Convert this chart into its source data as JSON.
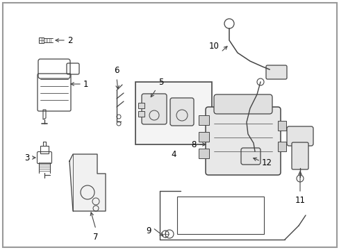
{
  "background_color": "#ffffff",
  "line_color": "#444444",
  "text_color": "#000000",
  "label_fontsize": 8.5,
  "fig_width": 4.89,
  "fig_height": 3.6,
  "dpi": 100
}
